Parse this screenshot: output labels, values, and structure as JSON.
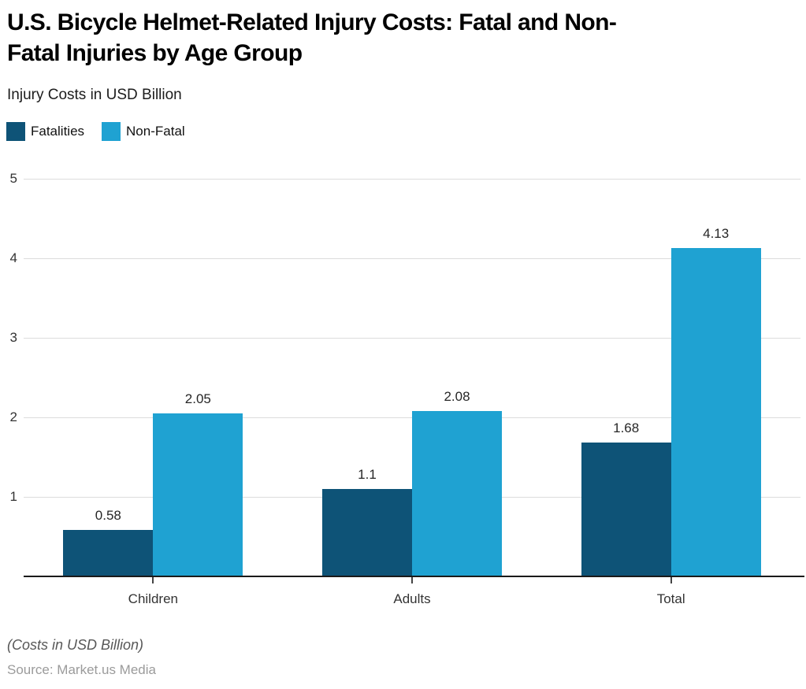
{
  "header": {
    "title": "U.S. Bicycle Helmet-Related Injury Costs: Fatal and Non-\nFatal Injuries by Age Group",
    "subtitle": "Injury Costs in USD Billion"
  },
  "legend": [
    {
      "label": "Fatalities",
      "color": "#0e5377"
    },
    {
      "label": "Non-Fatal",
      "color": "#1fa2d2"
    }
  ],
  "chart_data": {
    "type": "bar",
    "title": "U.S. Bicycle Helmet-Related Injury Costs: Fatal and Non-Fatal Injuries by Age Group",
    "subtitle": "Injury Costs in USD Billion",
    "categories": [
      "Children",
      "Adults",
      "Total"
    ],
    "series": [
      {
        "name": "Fatalities",
        "color": "#0e5377",
        "values": [
          0.58,
          1.1,
          1.68
        ],
        "labels": [
          "0.58",
          "1.1",
          "1.68"
        ]
      },
      {
        "name": "Non-Fatal",
        "color": "#1fa2d2",
        "values": [
          2.05,
          2.08,
          4.13
        ],
        "labels": [
          "2.05",
          "2.08",
          "4.13"
        ]
      }
    ],
    "xlabel": "",
    "ylabel": "Injury Costs in USD Billion",
    "ylim": [
      0,
      5
    ],
    "yticks": [
      1,
      2,
      3,
      4,
      5
    ],
    "grid": true,
    "legend_position": "top-left",
    "gridline_color": "#dcdcdc",
    "axis_color": "#1a1a1a"
  },
  "footer": {
    "note": "(Costs in USD Billion)",
    "source": "Source: Market.us Media"
  }
}
